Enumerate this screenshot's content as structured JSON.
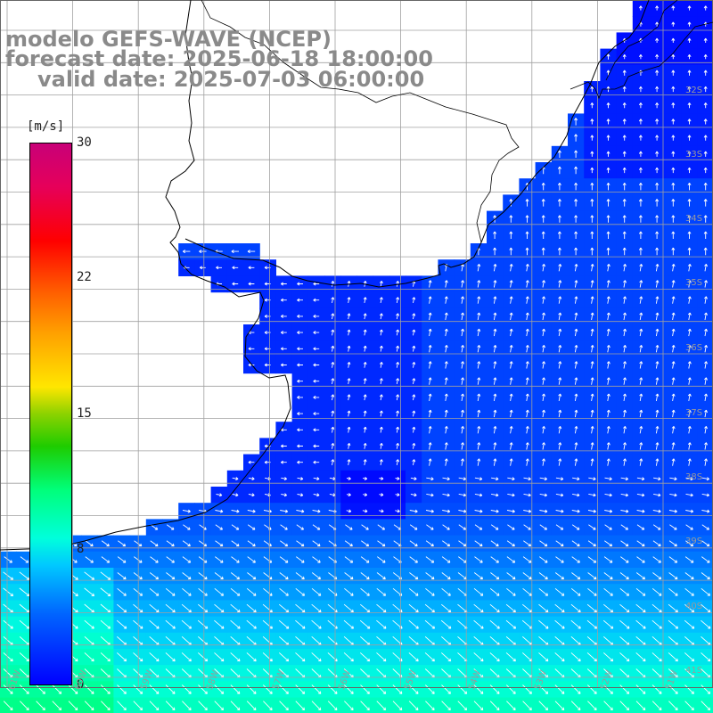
{
  "title": {
    "line1": "modelo GEFS-WAVE (NCEP)",
    "line2": "forecast date: 2025-06-18 18:00:00",
    "line3": "valid date: 2025-07-03 06:00:00"
  },
  "colorbar": {
    "units": "[m/s]",
    "ticks": [
      "30",
      "22",
      "15",
      "8",
      "0"
    ],
    "tick_values": [
      30,
      22,
      15,
      8,
      0
    ],
    "range": [
      0,
      30
    ]
  },
  "lat_labels": [
    "32S",
    "33S",
    "34S",
    "35S",
    "36S",
    "37S",
    "38S",
    "39S",
    "40S",
    "41S"
  ],
  "lon_labels": [
    "61W",
    "60W",
    "59W",
    "58W",
    "57W",
    "56W",
    "55W",
    "54W",
    "53W",
    "52W",
    "51W"
  ],
  "colors": {
    "land": "#ffffff",
    "grid": "#a0a0a0",
    "coast": "#000000",
    "arrow": "#ffffff",
    "title": "#8a8a8a"
  }
}
